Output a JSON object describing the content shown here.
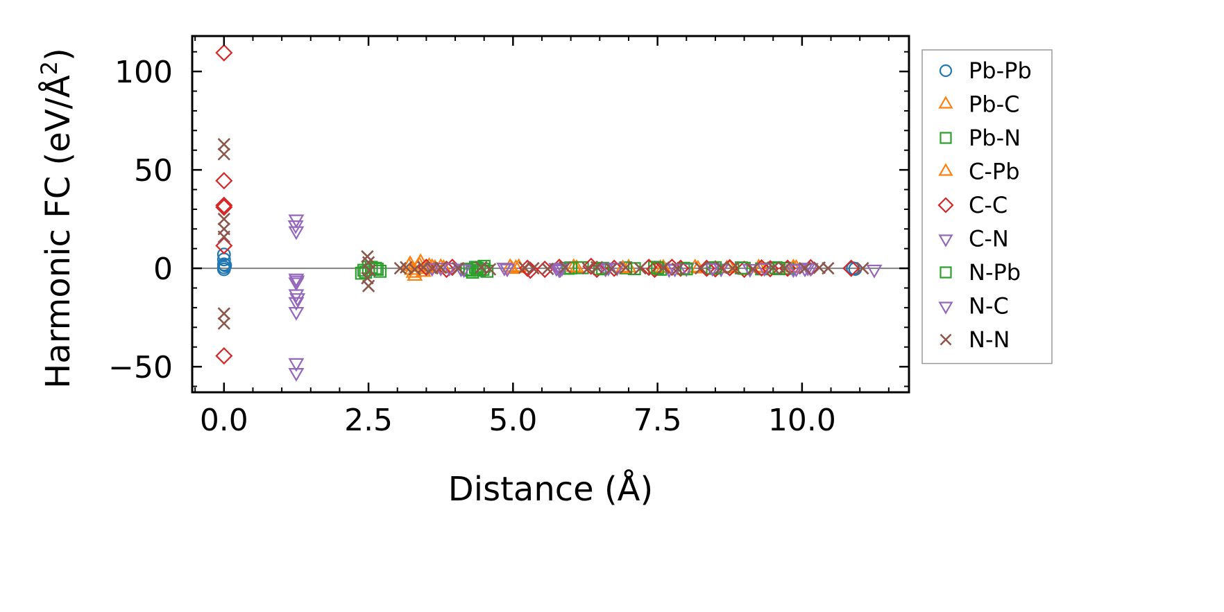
{
  "chart_data": {
    "type": "scatter",
    "title": "",
    "xlabel": "Distance (Å)",
    "ylabel_main": "Harmonic FC (eV/Å",
    "ylabel_sup": "2",
    "ylabel_close": ")",
    "xlim": [
      -0.55,
      11.85
    ],
    "ylim": [
      -63,
      118
    ],
    "xticks": [
      0.0,
      2.5,
      5.0,
      7.5,
      10.0
    ],
    "xtick_labels": [
      "0.0",
      "2.5",
      "5.0",
      "7.5",
      "10.0"
    ],
    "yticks": [
      -50,
      0,
      50,
      100
    ],
    "ytick_labels": [
      "−50",
      "0",
      "50",
      "100"
    ],
    "zero_line": true,
    "grid": false,
    "legend_position": "outside-right",
    "series": [
      {
        "name": "Pb-Pb",
        "color": "#1f77b4",
        "marker": "circle",
        "points": [
          [
            0.0,
            7.0
          ],
          [
            0.0,
            4.5
          ],
          [
            0.0,
            2.0
          ],
          [
            0.0,
            0.5
          ],
          [
            0.0,
            -0.5
          ],
          [
            0.02,
            1.5
          ],
          [
            10.88,
            0.0
          ],
          [
            10.92,
            -0.3
          ]
        ]
      },
      {
        "name": "Pb-C",
        "color": "#ff7f0e",
        "marker": "triangle-up",
        "points": [
          [
            3.22,
            2.0
          ],
          [
            3.25,
            -1.0
          ],
          [
            3.3,
            -4.0
          ],
          [
            3.35,
            0.5
          ],
          [
            3.4,
            3.0
          ],
          [
            3.45,
            -2.0
          ],
          [
            3.55,
            1.0
          ],
          [
            3.65,
            0.0
          ],
          [
            3.75,
            0.5
          ],
          [
            4.95,
            0.5
          ],
          [
            5.05,
            0.0
          ],
          [
            6.1,
            0.0
          ],
          [
            7.0,
            0.3
          ],
          [
            7.55,
            0.0
          ],
          [
            8.15,
            0.3
          ],
          [
            8.7,
            -0.2
          ],
          [
            9.25,
            0.3
          ],
          [
            9.9,
            0.0
          ]
        ]
      },
      {
        "name": "Pb-N",
        "color": "#2ca02c",
        "marker": "square",
        "points": [
          [
            2.38,
            -2.5
          ],
          [
            2.42,
            -1.0
          ],
          [
            2.5,
            0.5
          ],
          [
            2.62,
            0.0
          ],
          [
            2.7,
            -1.5
          ],
          [
            4.2,
            -0.5
          ],
          [
            4.3,
            -2.0
          ],
          [
            4.35,
            0.5
          ],
          [
            4.42,
            -1.0
          ],
          [
            4.5,
            1.0
          ],
          [
            4.55,
            -1.5
          ],
          [
            5.95,
            0.0
          ],
          [
            6.2,
            0.3
          ],
          [
            6.5,
            -0.3
          ],
          [
            6.95,
            0.2
          ],
          [
            7.1,
            -0.2
          ],
          [
            7.45,
            0.5
          ],
          [
            7.55,
            -0.5
          ],
          [
            7.95,
            0.0
          ],
          [
            8.45,
            0.0
          ],
          [
            8.95,
            0.2
          ],
          [
            9.3,
            -0.3
          ],
          [
            9.55,
            0.3
          ],
          [
            9.75,
            0.0
          ]
        ]
      },
      {
        "name": "C-Pb",
        "color": "#ff7f0e",
        "marker": "triangle-up",
        "points": [
          [
            3.2,
            1.0
          ],
          [
            3.28,
            -2.5
          ],
          [
            3.38,
            1.5
          ],
          [
            3.5,
            -0.5
          ],
          [
            3.6,
            0.5
          ],
          [
            3.8,
            0.0
          ],
          [
            4.98,
            -0.5
          ],
          [
            5.1,
            0.5
          ],
          [
            6.05,
            0.5
          ],
          [
            6.9,
            -0.2
          ],
          [
            7.6,
            0.2
          ],
          [
            8.2,
            -0.3
          ],
          [
            8.75,
            0.2
          ],
          [
            9.3,
            0.0
          ],
          [
            9.85,
            0.3
          ]
        ]
      },
      {
        "name": "C-C",
        "color": "#d62728",
        "marker": "diamond",
        "points": [
          [
            0.0,
            109.5
          ],
          [
            0.0,
            44.5
          ],
          [
            0.0,
            32.0
          ],
          [
            0.0,
            31.0
          ],
          [
            0.0,
            11.5
          ],
          [
            0.0,
            -44.5
          ],
          [
            3.5,
            0.5
          ],
          [
            3.85,
            -0.5
          ],
          [
            3.95,
            0.5
          ],
          [
            5.25,
            0.0
          ],
          [
            5.3,
            -1.0
          ],
          [
            5.55,
            -0.5
          ],
          [
            5.8,
            0.5
          ],
          [
            6.35,
            1.0
          ],
          [
            6.45,
            -0.5
          ],
          [
            6.75,
            0.0
          ],
          [
            7.35,
            0.5
          ],
          [
            7.45,
            -0.5
          ],
          [
            7.75,
            0.5
          ],
          [
            7.9,
            0.0
          ],
          [
            8.35,
            0.0
          ],
          [
            8.5,
            -0.3
          ],
          [
            8.75,
            0.3
          ],
          [
            9.0,
            -0.5
          ],
          [
            9.3,
            0.2
          ],
          [
            9.45,
            -0.2
          ],
          [
            9.75,
            0.0
          ],
          [
            10.15,
            0.3
          ],
          [
            10.85,
            0.0
          ]
        ]
      },
      {
        "name": "C-N",
        "color": "#9467bd",
        "marker": "triangle-down",
        "points": [
          [
            1.25,
            25.0
          ],
          [
            1.25,
            19.0
          ],
          [
            1.25,
            -5.0
          ],
          [
            1.25,
            -7.0
          ],
          [
            1.25,
            -13.0
          ],
          [
            1.25,
            -17.0
          ],
          [
            1.25,
            -22.0
          ],
          [
            1.25,
            -48.0
          ],
          [
            1.25,
            -53.0
          ],
          [
            3.9,
            0.5
          ],
          [
            4.1,
            0.0
          ],
          [
            4.85,
            0.5
          ],
          [
            5.8,
            -0.5
          ],
          [
            5.85,
            0.5
          ],
          [
            6.6,
            0.0
          ],
          [
            6.8,
            0.5
          ],
          [
            7.7,
            -0.3
          ],
          [
            8.0,
            0.2
          ],
          [
            8.6,
            0.0
          ],
          [
            9.35,
            0.3
          ],
          [
            9.85,
            -0.3
          ],
          [
            10.05,
            0.0
          ],
          [
            10.1,
            0.5
          ]
        ]
      },
      {
        "name": "N-Pb",
        "color": "#2ca02c",
        "marker": "square",
        "points": [
          [
            2.45,
            -2.0
          ],
          [
            2.55,
            0.5
          ],
          [
            2.65,
            -0.5
          ],
          [
            4.25,
            -1.0
          ],
          [
            4.38,
            0.0
          ],
          [
            4.48,
            -0.5
          ],
          [
            6.0,
            0.2
          ],
          [
            6.55,
            0.0
          ],
          [
            7.5,
            0.2
          ],
          [
            8.0,
            -0.3
          ],
          [
            8.5,
            0.3
          ],
          [
            9.0,
            0.0
          ],
          [
            9.6,
            -0.2
          ]
        ]
      },
      {
        "name": "N-C",
        "color": "#9467bd",
        "marker": "triangle-down",
        "points": [
          [
            1.24,
            22.0
          ],
          [
            1.26,
            -6.0
          ],
          [
            1.27,
            -15.0
          ],
          [
            3.6,
            0.3
          ],
          [
            3.75,
            0.5
          ],
          [
            4.15,
            -0.3
          ],
          [
            4.9,
            0.0
          ],
          [
            5.75,
            0.3
          ],
          [
            5.82,
            -0.3
          ],
          [
            6.65,
            0.5
          ],
          [
            7.8,
            0.0
          ],
          [
            8.45,
            0.3
          ],
          [
            9.1,
            -0.2
          ],
          [
            9.9,
            0.0
          ],
          [
            10.15,
            0.3
          ],
          [
            11.25,
            -0.5
          ]
        ]
      },
      {
        "name": "N-N",
        "color": "#8c564b",
        "marker": "x",
        "points": [
          [
            0.0,
            63.0
          ],
          [
            0.0,
            58.0
          ],
          [
            0.0,
            25.0
          ],
          [
            0.0,
            20.0
          ],
          [
            0.0,
            16.0
          ],
          [
            0.0,
            -23.0
          ],
          [
            0.0,
            -28.0
          ],
          [
            2.48,
            6.0
          ],
          [
            2.5,
            3.0
          ],
          [
            2.52,
            -1.0
          ],
          [
            2.48,
            -5.0
          ],
          [
            2.5,
            -9.0
          ],
          [
            3.05,
            0.0
          ],
          [
            3.15,
            0.5
          ],
          [
            3.3,
            -0.5
          ],
          [
            3.45,
            0.5
          ],
          [
            3.6,
            0.0
          ],
          [
            3.75,
            0.3
          ],
          [
            4.05,
            0.0
          ],
          [
            4.45,
            0.5
          ],
          [
            4.6,
            -0.5
          ],
          [
            5.2,
            0.3
          ],
          [
            5.35,
            0.0
          ],
          [
            5.6,
            -0.3
          ],
          [
            5.9,
            0.5
          ],
          [
            6.3,
            0.0
          ],
          [
            6.45,
            0.5
          ],
          [
            6.7,
            -0.3
          ],
          [
            6.95,
            0.3
          ],
          [
            7.2,
            0.0
          ],
          [
            7.6,
            0.3
          ],
          [
            7.85,
            -0.3
          ],
          [
            8.25,
            0.0
          ],
          [
            8.6,
            0.3
          ],
          [
            8.8,
            0.0
          ],
          [
            9.15,
            -0.3
          ],
          [
            9.5,
            0.3
          ],
          [
            9.7,
            0.0
          ],
          [
            10.05,
            0.0
          ],
          [
            10.3,
            0.3
          ],
          [
            10.45,
            0.0
          ],
          [
            11.05,
            0.0
          ]
        ]
      }
    ]
  }
}
